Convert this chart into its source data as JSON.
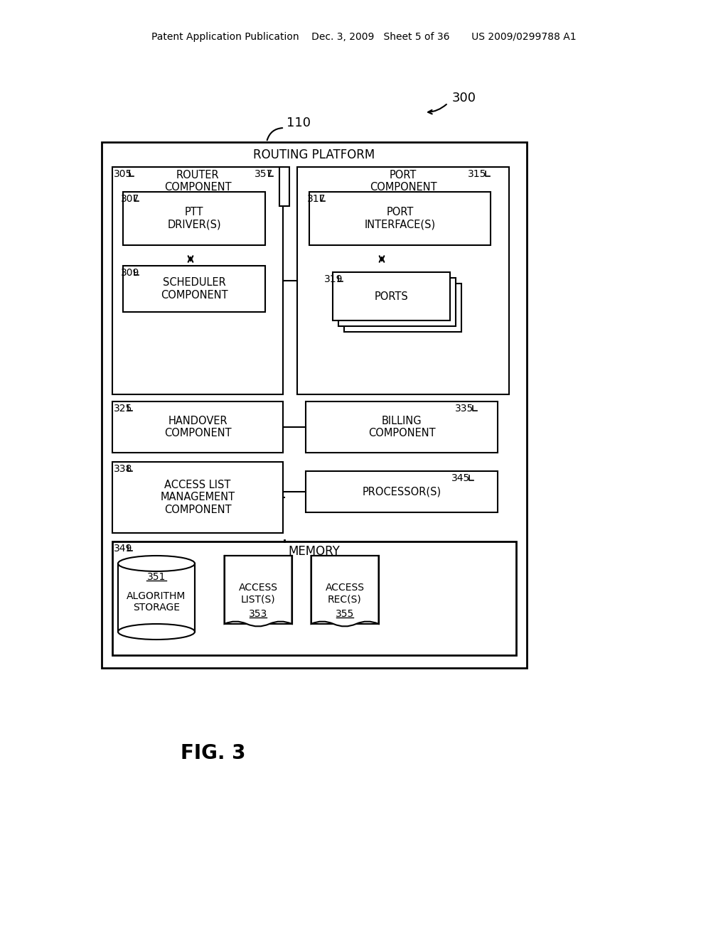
{
  "bg_color": "#ffffff",
  "header_text": "Patent Application Publication    Dec. 3, 2009   Sheet 5 of 36       US 2009/0299788 A1",
  "fig_label": "FIG. 3",
  "label_300": "300",
  "label_110": "110",
  "label_routing": "ROUTING PLATFORM",
  "label_305": "305",
  "label_315": "315",
  "label_357": "357",
  "label_router": "ROUTER\nCOMPONENT",
  "label_port": "PORT\nCOMPONENT",
  "label_307": "307",
  "label_317": "317",
  "label_ptt": "PTT\nDRIVER(S)",
  "label_port_iface": "PORT\nINTERFACE(S)",
  "label_309": "309",
  "label_319": "319",
  "label_sched": "SCHEDULER\nCOMPONENT",
  "label_ports": "PORTS",
  "label_325": "325",
  "label_335": "335",
  "label_handover": "HANDOVER\nCOMPONENT",
  "label_billing": "BILLING\nCOMPONENT",
  "label_338": "338",
  "label_345": "345",
  "label_access_list_mgmt": "ACCESS LIST\nMANAGEMENT\nCOMPONENT",
  "label_processor": "PROCESSOR(S)",
  "label_349": "349",
  "label_memory": "MEMORY",
  "label_351": "351",
  "label_algo": "ALGORITHM\nSTORAGE",
  "label_353": "353",
  "label_access_list": "ACCESS\nLIST(S)",
  "label_355": "355",
  "label_access_rec": "ACCESS\nREC(S)"
}
